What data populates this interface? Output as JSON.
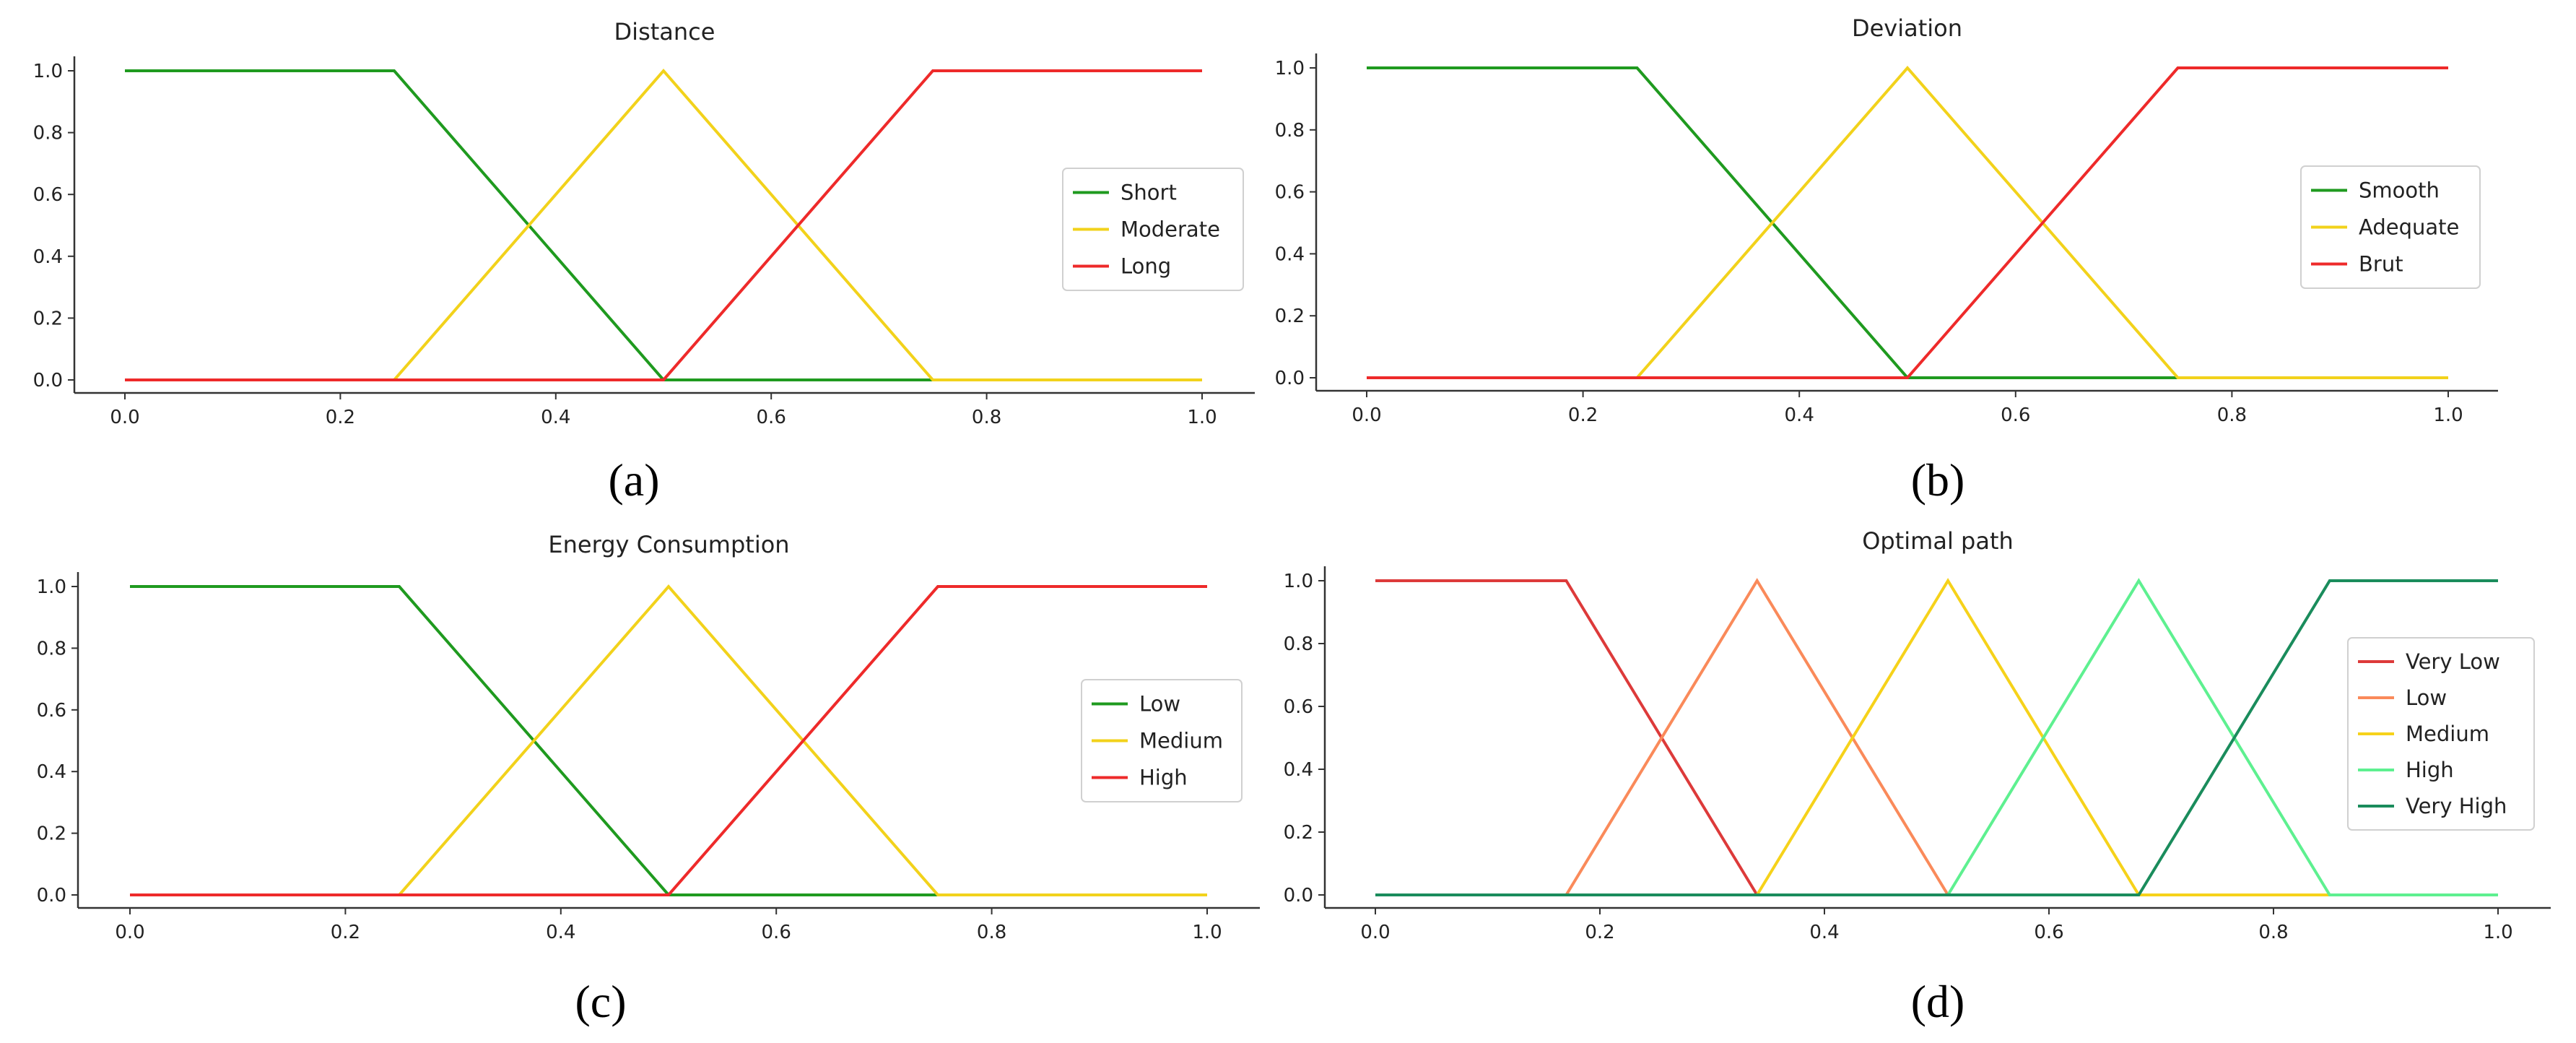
{
  "chart_data": [
    {
      "type": "line",
      "title": "Distance",
      "caption": "(a)",
      "xlim": [
        0,
        1
      ],
      "ylim": [
        0,
        1
      ],
      "xticks": [
        "0.0",
        "0.2",
        "0.4",
        "0.6",
        "0.8",
        "1.0"
      ],
      "yticks": [
        "0.0",
        "0.2",
        "0.4",
        "0.6",
        "0.8",
        "1.0"
      ],
      "legend_position": "right",
      "series": [
        {
          "name": "Short",
          "color": "#1f9a1f",
          "x": [
            0,
            0.25,
            0.5,
            0.75,
            1.0
          ],
          "y": [
            1,
            1,
            0,
            0,
            0
          ]
        },
        {
          "name": "Moderate",
          "color": "#f2d21b",
          "x": [
            0,
            0.25,
            0.5,
            0.75,
            1.0
          ],
          "y": [
            0,
            0,
            1,
            0,
            0
          ]
        },
        {
          "name": "Long",
          "color": "#ee2a2a",
          "x": [
            0,
            0.25,
            0.5,
            0.75,
            1.0
          ],
          "y": [
            0,
            0,
            0,
            1,
            1
          ]
        }
      ]
    },
    {
      "type": "line",
      "title": "Deviation",
      "caption": "(b)",
      "xlim": [
        0,
        1
      ],
      "ylim": [
        0,
        1
      ],
      "xticks": [
        "0.0",
        "0.2",
        "0.4",
        "0.6",
        "0.8",
        "1.0"
      ],
      "yticks": [
        "0.0",
        "0.2",
        "0.4",
        "0.6",
        "0.8",
        "1.0"
      ],
      "legend_position": "right",
      "series": [
        {
          "name": "Smooth",
          "color": "#1f9a1f",
          "x": [
            0,
            0.25,
            0.5,
            0.75,
            1.0
          ],
          "y": [
            1,
            1,
            0,
            0,
            0
          ]
        },
        {
          "name": "Adequate",
          "color": "#f2d21b",
          "x": [
            0,
            0.25,
            0.5,
            0.75,
            1.0
          ],
          "y": [
            0,
            0,
            1,
            0,
            0
          ]
        },
        {
          "name": "Brut",
          "color": "#ee2a2a",
          "x": [
            0,
            0.25,
            0.5,
            0.75,
            1.0
          ],
          "y": [
            0,
            0,
            0,
            1,
            1
          ]
        }
      ]
    },
    {
      "type": "line",
      "title": "Energy Consumption",
      "caption": "(c)",
      "xlim": [
        0,
        1
      ],
      "ylim": [
        0,
        1
      ],
      "xticks": [
        "0.0",
        "0.2",
        "0.4",
        "0.6",
        "0.8",
        "1.0"
      ],
      "yticks": [
        "0.0",
        "0.2",
        "0.4",
        "0.6",
        "0.8",
        "1.0"
      ],
      "legend_position": "right",
      "series": [
        {
          "name": "Low",
          "color": "#1f9a1f",
          "x": [
            0,
            0.25,
            0.5,
            0.75,
            1.0
          ],
          "y": [
            1,
            1,
            0,
            0,
            0
          ]
        },
        {
          "name": "Medium",
          "color": "#f2d21b",
          "x": [
            0,
            0.25,
            0.5,
            0.75,
            1.0
          ],
          "y": [
            0,
            0,
            1,
            0,
            0
          ]
        },
        {
          "name": "High",
          "color": "#ee2a2a",
          "x": [
            0,
            0.25,
            0.5,
            0.75,
            1.0
          ],
          "y": [
            0,
            0,
            0,
            1,
            1
          ]
        }
      ]
    },
    {
      "type": "line",
      "title": "Optimal path",
      "caption": "(d)",
      "xlim": [
        0,
        1
      ],
      "ylim": [
        0,
        1
      ],
      "xticks": [
        "0.0",
        "0.2",
        "0.4",
        "0.6",
        "0.8",
        "1.0"
      ],
      "yticks": [
        "0.0",
        "0.2",
        "0.4",
        "0.6",
        "0.8",
        "1.0"
      ],
      "legend_position": "right",
      "series": [
        {
          "name": "Very Low",
          "color": "#dd3a3a",
          "x": [
            0,
            0.17,
            0.34,
            1.0
          ],
          "y": [
            1,
            1,
            0,
            0
          ]
        },
        {
          "name": "Low",
          "color": "#fa8a5a",
          "x": [
            0,
            0.17,
            0.34,
            0.51,
            1.0
          ],
          "y": [
            0,
            0,
            1,
            0,
            0
          ]
        },
        {
          "name": "Medium",
          "color": "#f6d21a",
          "x": [
            0,
            0.34,
            0.51,
            0.68,
            1.0
          ],
          "y": [
            0,
            0,
            1,
            0,
            0
          ]
        },
        {
          "name": "High",
          "color": "#5ef090",
          "x": [
            0,
            0.51,
            0.68,
            0.85,
            1.0
          ],
          "y": [
            0,
            0,
            1,
            0,
            0
          ]
        },
        {
          "name": "Very High",
          "color": "#1a8c5c",
          "x": [
            0,
            0.68,
            0.85,
            1.0
          ],
          "y": [
            0,
            0,
            1,
            1
          ]
        }
      ]
    }
  ]
}
